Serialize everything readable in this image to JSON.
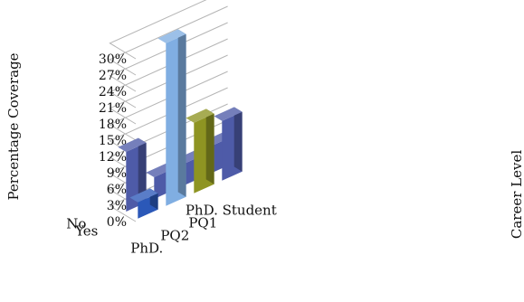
{
  "chart_data": {
    "type": "bar",
    "subtype": "3d-column",
    "ylabel": "Percentage Coverage",
    "zlabel": "Career Level",
    "ylim": [
      0,
      30
    ],
    "yticks": [
      "0%",
      "3%",
      "6%",
      "9%",
      "12%",
      "15%",
      "18%",
      "21%",
      "24%",
      "27%",
      "30%"
    ],
    "grid": true,
    "categories": [
      "PhD.",
      "PQ2",
      "PQ1",
      "PhD. Student"
    ],
    "series": [
      {
        "name": "Yes",
        "color": "#2b58b8",
        "values": [
          3,
          30,
          13,
          11
        ]
      },
      {
        "name": "No",
        "color": "#4e5ba8",
        "values": [
          11,
          4,
          4,
          5
        ]
      }
    ],
    "category_colors": [
      "#2b58b8",
      "#80aee2",
      "#8e9422",
      "#4e5ba8"
    ]
  }
}
